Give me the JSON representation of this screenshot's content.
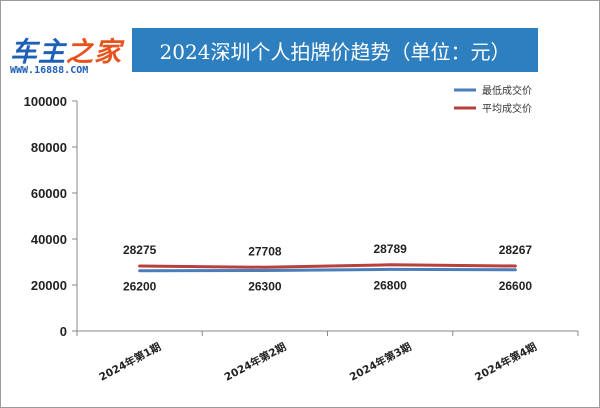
{
  "logo": {
    "name_part1": "车主",
    "name_part2": "之家",
    "url": "WWW.16888.COM"
  },
  "colors": {
    "title_bg": "#2e7fc0",
    "series_min": "#4a7ebb",
    "series_avg": "#b8403d"
  },
  "chart_data": {
    "type": "line",
    "title": "2024深圳个人拍牌价趋势（单位：元）",
    "categories": [
      "2024年第1期",
      "2024年第2期",
      "2024年第3期",
      "2024年第4期"
    ],
    "series": [
      {
        "name": "最低成交价",
        "values": [
          26200,
          26300,
          26800,
          26600
        ],
        "color": "#4a7ebb",
        "label_position": "below"
      },
      {
        "name": "平均成交价",
        "values": [
          28275,
          27708,
          28789,
          28267
        ],
        "color": "#b8403d",
        "label_position": "above"
      }
    ],
    "ylim": [
      0,
      100000
    ],
    "yticks": [
      "0",
      "20000",
      "40000",
      "60000",
      "80000",
      "100000"
    ],
    "xlabel": "",
    "ylabel": "",
    "grid": false,
    "legend_position": "top-right"
  }
}
